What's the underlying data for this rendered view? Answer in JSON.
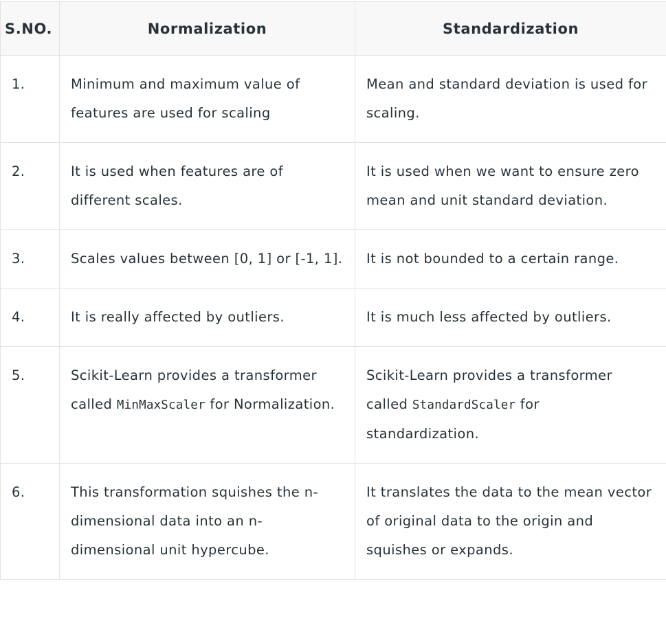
{
  "table": {
    "headers": [
      "S.NO.",
      "Normalization",
      "Standardization"
    ],
    "rows": [
      {
        "num": "1.",
        "normalization": [
          "Minimum and maximum value of features are used for scaling"
        ],
        "standardization": [
          "Mean and standard deviation is used for scaling."
        ]
      },
      {
        "num": "2.",
        "normalization": [
          "It is used when features are of different scales."
        ],
        "standardization": [
          "It is used when we want to ensure zero mean and unit standard deviation."
        ]
      },
      {
        "num": "3.",
        "normalization": [
          "Scales values between [0, 1] or [-1, 1]."
        ],
        "standardization": [
          "It is not bounded to a certain range."
        ]
      },
      {
        "num": "4.",
        "normalization": [
          "It is really affected by outliers."
        ],
        "standardization": [
          "It is much less affected by outliers."
        ]
      },
      {
        "num": "5.",
        "normalization": [
          "Scikit-Learn provides a transformer called ",
          "MinMaxScaler",
          " for Normalization."
        ],
        "standardization": [
          "Scikit-Learn provides a transformer called ",
          "StandardScaler",
          " for standardization."
        ]
      },
      {
        "num": "6.",
        "normalization": [
          "This transformation squishes the n-dimensional data into an n-dimensional unit hypercube."
        ],
        "standardization": [
          "It translates the data to the mean vector of original data to the origin and squishes or expands."
        ]
      }
    ]
  }
}
